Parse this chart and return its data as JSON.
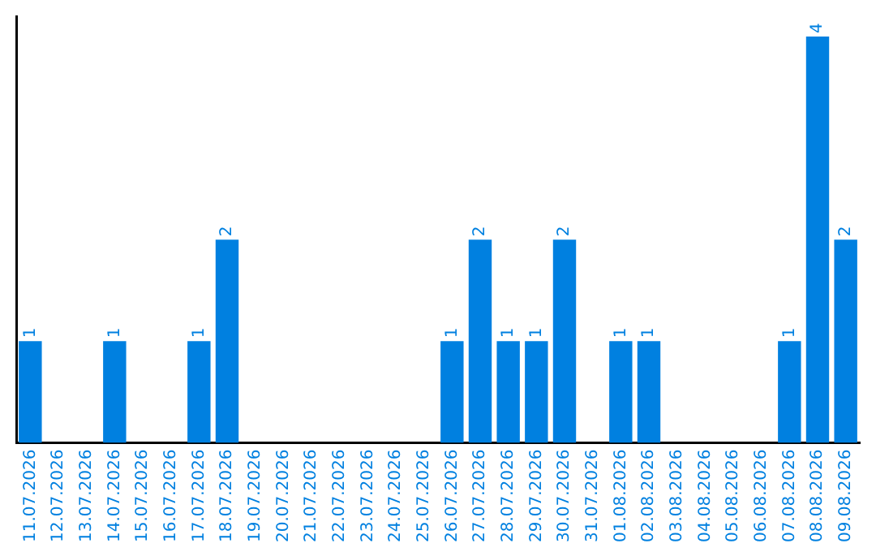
{
  "chart_data": {
    "type": "bar",
    "categories": [
      "11.07.2026",
      "12.07.2026",
      "13.07.2026",
      "14.07.2026",
      "15.07.2026",
      "16.07.2026",
      "17.07.2026",
      "18.07.2026",
      "19.07.2026",
      "20.07.2026",
      "21.07.2026",
      "22.07.2026",
      "23.07.2026",
      "24.07.2026",
      "25.07.2026",
      "26.07.2026",
      "27.07.2026",
      "28.07.2026",
      "29.07.2026",
      "30.07.2026",
      "31.07.2026",
      "01.08.2026",
      "02.08.2026",
      "03.08.2026",
      "04.08.2026",
      "05.08.2026",
      "06.08.2026",
      "07.08.2026",
      "08.08.2026",
      "09.08.2026"
    ],
    "values": [
      1,
      0,
      0,
      1,
      0,
      0,
      1,
      2,
      0,
      0,
      0,
      0,
      0,
      0,
      0,
      1,
      2,
      1,
      1,
      2,
      0,
      1,
      1,
      0,
      0,
      0,
      0,
      1,
      4,
      2
    ],
    "value_labels": [
      "1",
      null,
      null,
      "1",
      null,
      null,
      "1",
      "2",
      null,
      null,
      null,
      null,
      null,
      null,
      null,
      "1",
      "2",
      "1",
      "1",
      "2",
      null,
      "1",
      "1",
      null,
      null,
      null,
      null,
      "1",
      "4",
      "2"
    ],
    "color": "#0080e0",
    "ylim": [
      0,
      4.2
    ],
    "tick_labels": "x",
    "grid": false,
    "legend": false
  }
}
